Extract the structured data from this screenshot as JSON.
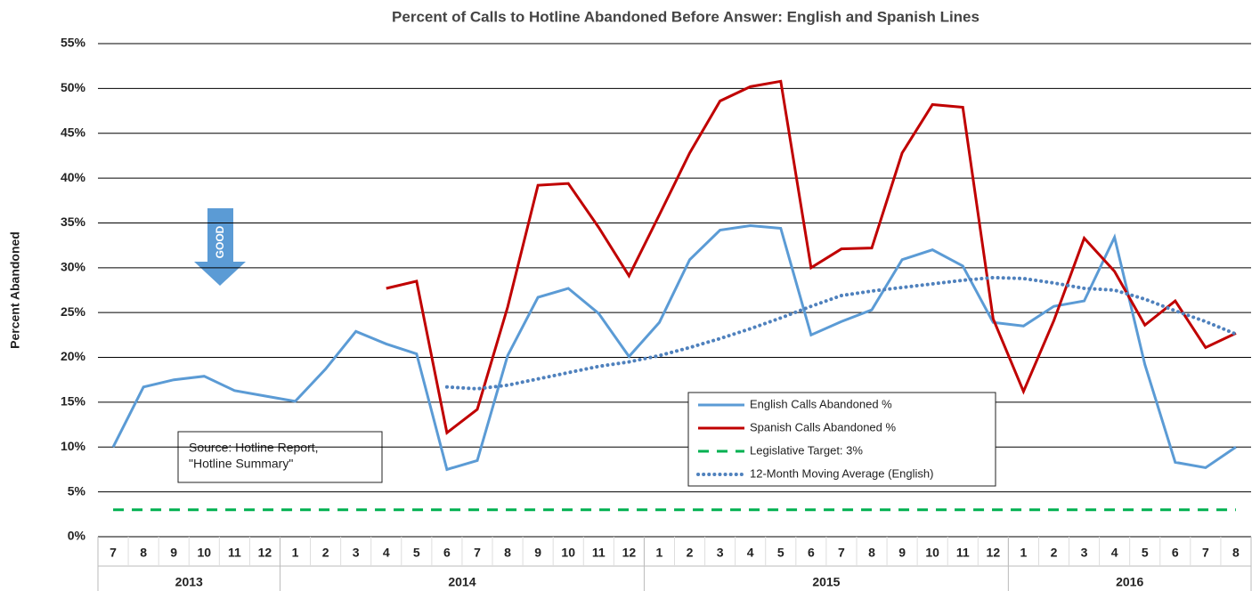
{
  "chart_data": {
    "type": "line",
    "title": "Percent of Calls to Hotline Abandoned Before Answer: English and Spanish Lines",
    "y_label": "Percent Abandoned",
    "categories": [
      "7",
      "8",
      "9",
      "10",
      "11",
      "12",
      "1",
      "2",
      "3",
      "4",
      "5",
      "6",
      "7",
      "8",
      "9",
      "10",
      "11",
      "12",
      "1",
      "2",
      "3",
      "4",
      "5",
      "6",
      "7",
      "8",
      "9",
      "10",
      "11",
      "12",
      "1",
      "2",
      "3",
      "4",
      "5",
      "6",
      "7",
      "8"
    ],
    "years": [
      "2013",
      "2014",
      "2015",
      "2016"
    ],
    "ylim": [
      0,
      55
    ],
    "yticks": [
      {
        "value": 0,
        "label": "0%"
      },
      {
        "value": 5,
        "label": "5%"
      },
      {
        "value": 10,
        "label": "10%"
      },
      {
        "value": 15,
        "label": "15%"
      },
      {
        "value": 20,
        "label": "20%"
      },
      {
        "value": 25,
        "label": "25%"
      },
      {
        "value": 30,
        "label": "30%"
      },
      {
        "value": 35,
        "label": "35%"
      },
      {
        "value": 40,
        "label": "40%"
      },
      {
        "value": 45,
        "label": "45%"
      },
      {
        "value": 50,
        "label": "50%"
      },
      {
        "value": 55,
        "label": "55%"
      }
    ],
    "grid": true,
    "series": [
      {
        "name": "English Calls Abandoned %",
        "color": "#5b9bd5",
        "style": "solid",
        "values": [
          10,
          16.7,
          17.5,
          17.9,
          16.3,
          15.7,
          15.1,
          18.7,
          22.9,
          21.5,
          20.4,
          7.5,
          8.5,
          20.2,
          26.7,
          27.7,
          24.9,
          20.1,
          23.9,
          30.9,
          34.2,
          34.7,
          34.4,
          22.5,
          24.0,
          25.3,
          30.9,
          32.0,
          30.2,
          23.9,
          23.5,
          25.7,
          26.3,
          33.4,
          19.2,
          8.3,
          7.7,
          10.0
        ]
      },
      {
        "name": "Spanish Calls Abandoned %",
        "color": "#c00000",
        "style": "solid",
        "values": [
          null,
          null,
          null,
          null,
          null,
          null,
          null,
          null,
          null,
          27.7,
          28.5,
          11.6,
          14.2,
          25.6,
          39.2,
          39.4,
          34.5,
          29.1,
          35.9,
          42.8,
          48.6,
          50.2,
          50.8,
          30.0,
          32.1,
          32.2,
          42.8,
          48.2,
          47.9,
          24.3,
          16.2,
          24.1,
          33.3,
          29.6,
          23.6,
          26.3,
          21.1,
          22.7
        ]
      },
      {
        "name": "Legislative Target: 3%",
        "color": "#00b050",
        "style": "dashed",
        "values": [
          3,
          3,
          3,
          3,
          3,
          3,
          3,
          3,
          3,
          3,
          3,
          3,
          3,
          3,
          3,
          3,
          3,
          3,
          3,
          3,
          3,
          3,
          3,
          3,
          3,
          3,
          3,
          3,
          3,
          3,
          3,
          3,
          3,
          3,
          3,
          3,
          3,
          3
        ]
      },
      {
        "name": "12-Month Moving Average (English)",
        "color": "#4f81bd",
        "style": "dotted",
        "values": [
          null,
          null,
          null,
          null,
          null,
          null,
          null,
          null,
          null,
          null,
          null,
          16.7,
          16.5,
          16.9,
          17.6,
          18.3,
          19.0,
          19.5,
          20.2,
          21.1,
          22.1,
          23.2,
          24.4,
          25.7,
          26.9,
          27.4,
          27.8,
          28.2,
          28.6,
          28.9,
          28.8,
          28.3,
          27.7,
          27.5,
          26.5,
          25.2,
          24.0,
          22.6
        ]
      }
    ],
    "annotations": [
      "GOOD"
    ],
    "source": [
      "Source: Hotline Report,",
      "\"Hotline Summary\""
    ]
  }
}
